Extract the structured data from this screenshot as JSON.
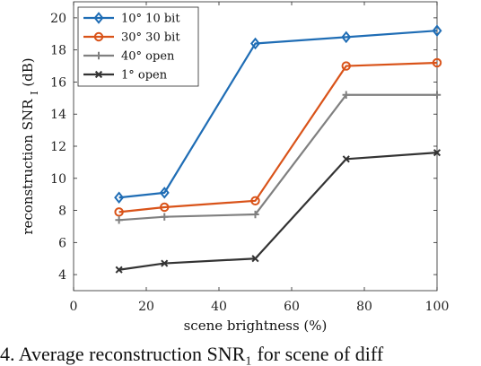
{
  "chart_data": {
    "type": "line",
    "xlabel": "scene brightness (%)",
    "ylabel": "reconstruction SNR",
    "ylabel_sub": "I",
    "ylabel_unit": "(dB)",
    "xlim": [
      0,
      100
    ],
    "ylim": [
      3,
      21
    ],
    "x_ticks": [
      0,
      20,
      40,
      60,
      80,
      100
    ],
    "y_ticks": [
      4,
      6,
      8,
      10,
      12,
      14,
      16,
      18,
      20
    ],
    "grid": false,
    "legend_position": "top-left",
    "x": [
      12.5,
      25,
      50,
      75,
      100
    ],
    "series": [
      {
        "name": "10° 10 bit",
        "color": "#1f6db5",
        "marker": "diamond",
        "values": [
          8.8,
          9.1,
          18.4,
          18.8,
          19.2
        ]
      },
      {
        "name": "30° 30 bit",
        "color": "#d95319",
        "marker": "circle",
        "values": [
          7.9,
          8.2,
          8.6,
          17.0,
          17.2
        ]
      },
      {
        "name": "40° open",
        "color": "#808080",
        "marker": "plus",
        "values": [
          7.4,
          7.6,
          7.75,
          15.2,
          15.2
        ]
      },
      {
        "name": "1° open",
        "color": "#333333",
        "marker": "x",
        "values": [
          4.3,
          4.7,
          5.0,
          11.2,
          11.6
        ]
      }
    ]
  },
  "caption": {
    "text": "4. Average reconstruction SNR₁ for scene of diff"
  }
}
